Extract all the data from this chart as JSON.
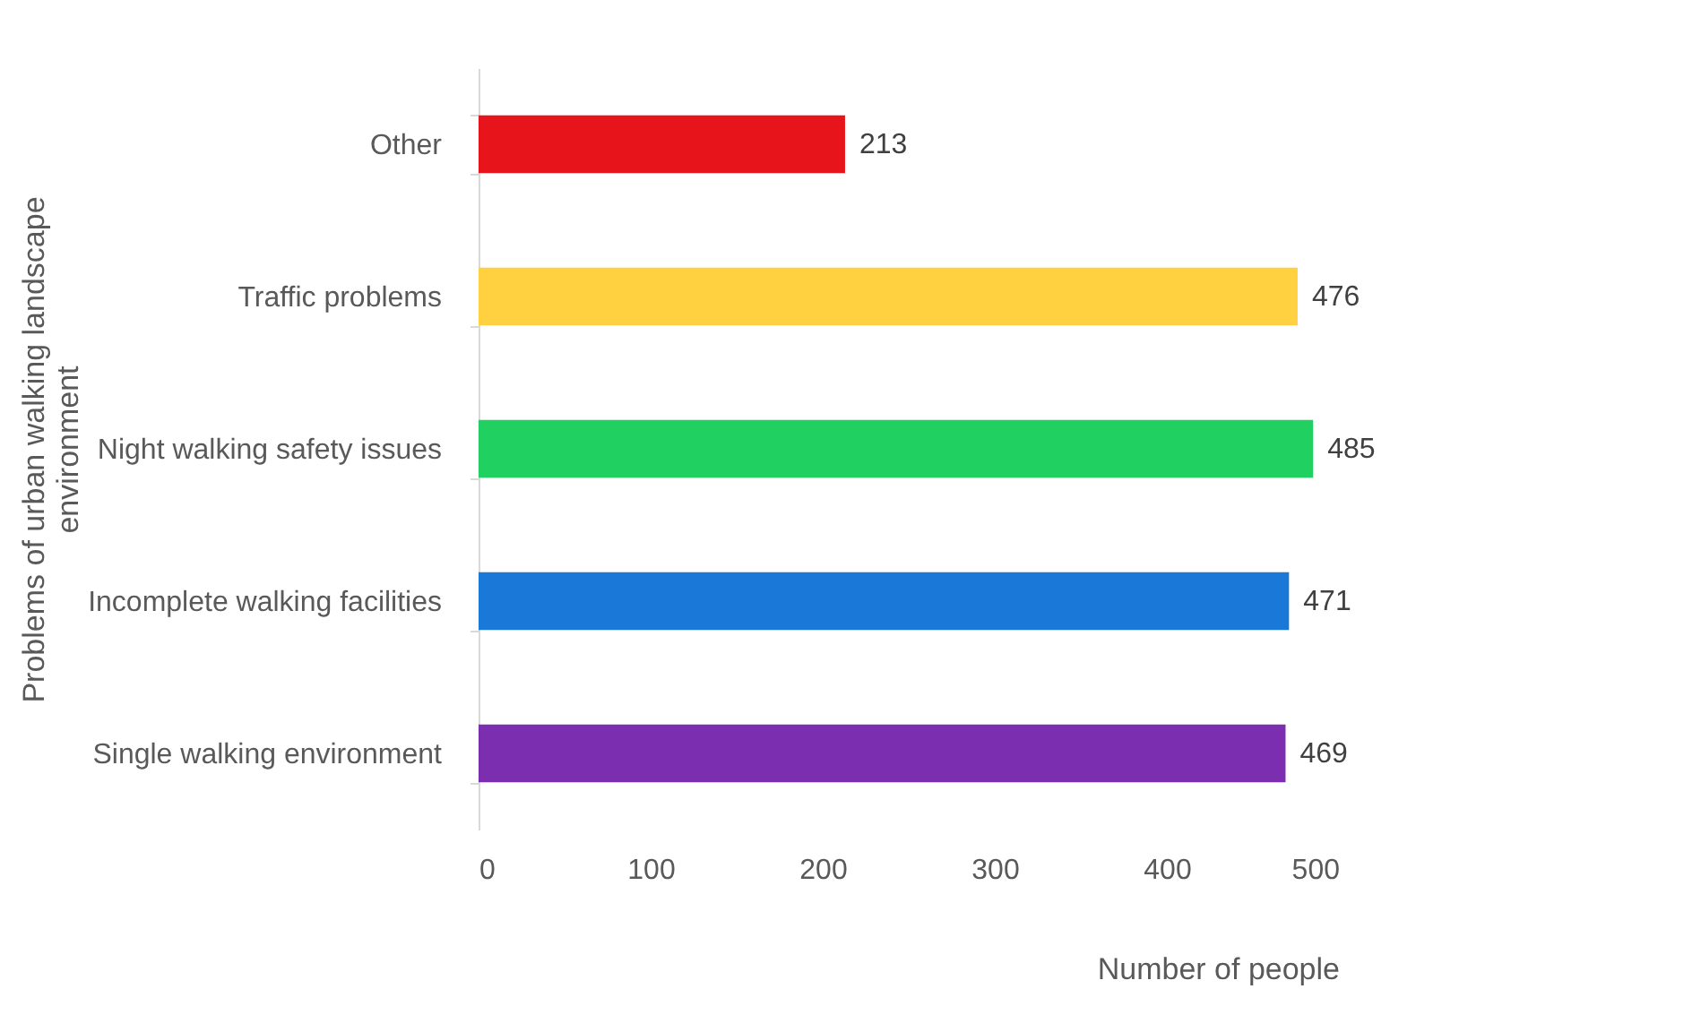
{
  "chart_data": {
    "type": "bar",
    "orientation": "horizontal",
    "xlabel": "Number of people",
    "ylabel": "Problems of urban walking landscape environment",
    "categories": [
      "Other",
      "Traffic problems",
      "Night walking safety issues",
      "Incomplete walking facilities",
      "Single walking environment"
    ],
    "values": [
      213,
      476,
      485,
      471,
      469
    ],
    "colors": [
      "#e8141c",
      "#ffd040",
      "#20d060",
      "#1a78d8",
      "#7b2fb0"
    ],
    "xlim": [
      0,
      500
    ],
    "xticks": [
      0,
      100,
      200,
      300,
      400,
      500
    ],
    "data_labels": true,
    "grid": false
  }
}
